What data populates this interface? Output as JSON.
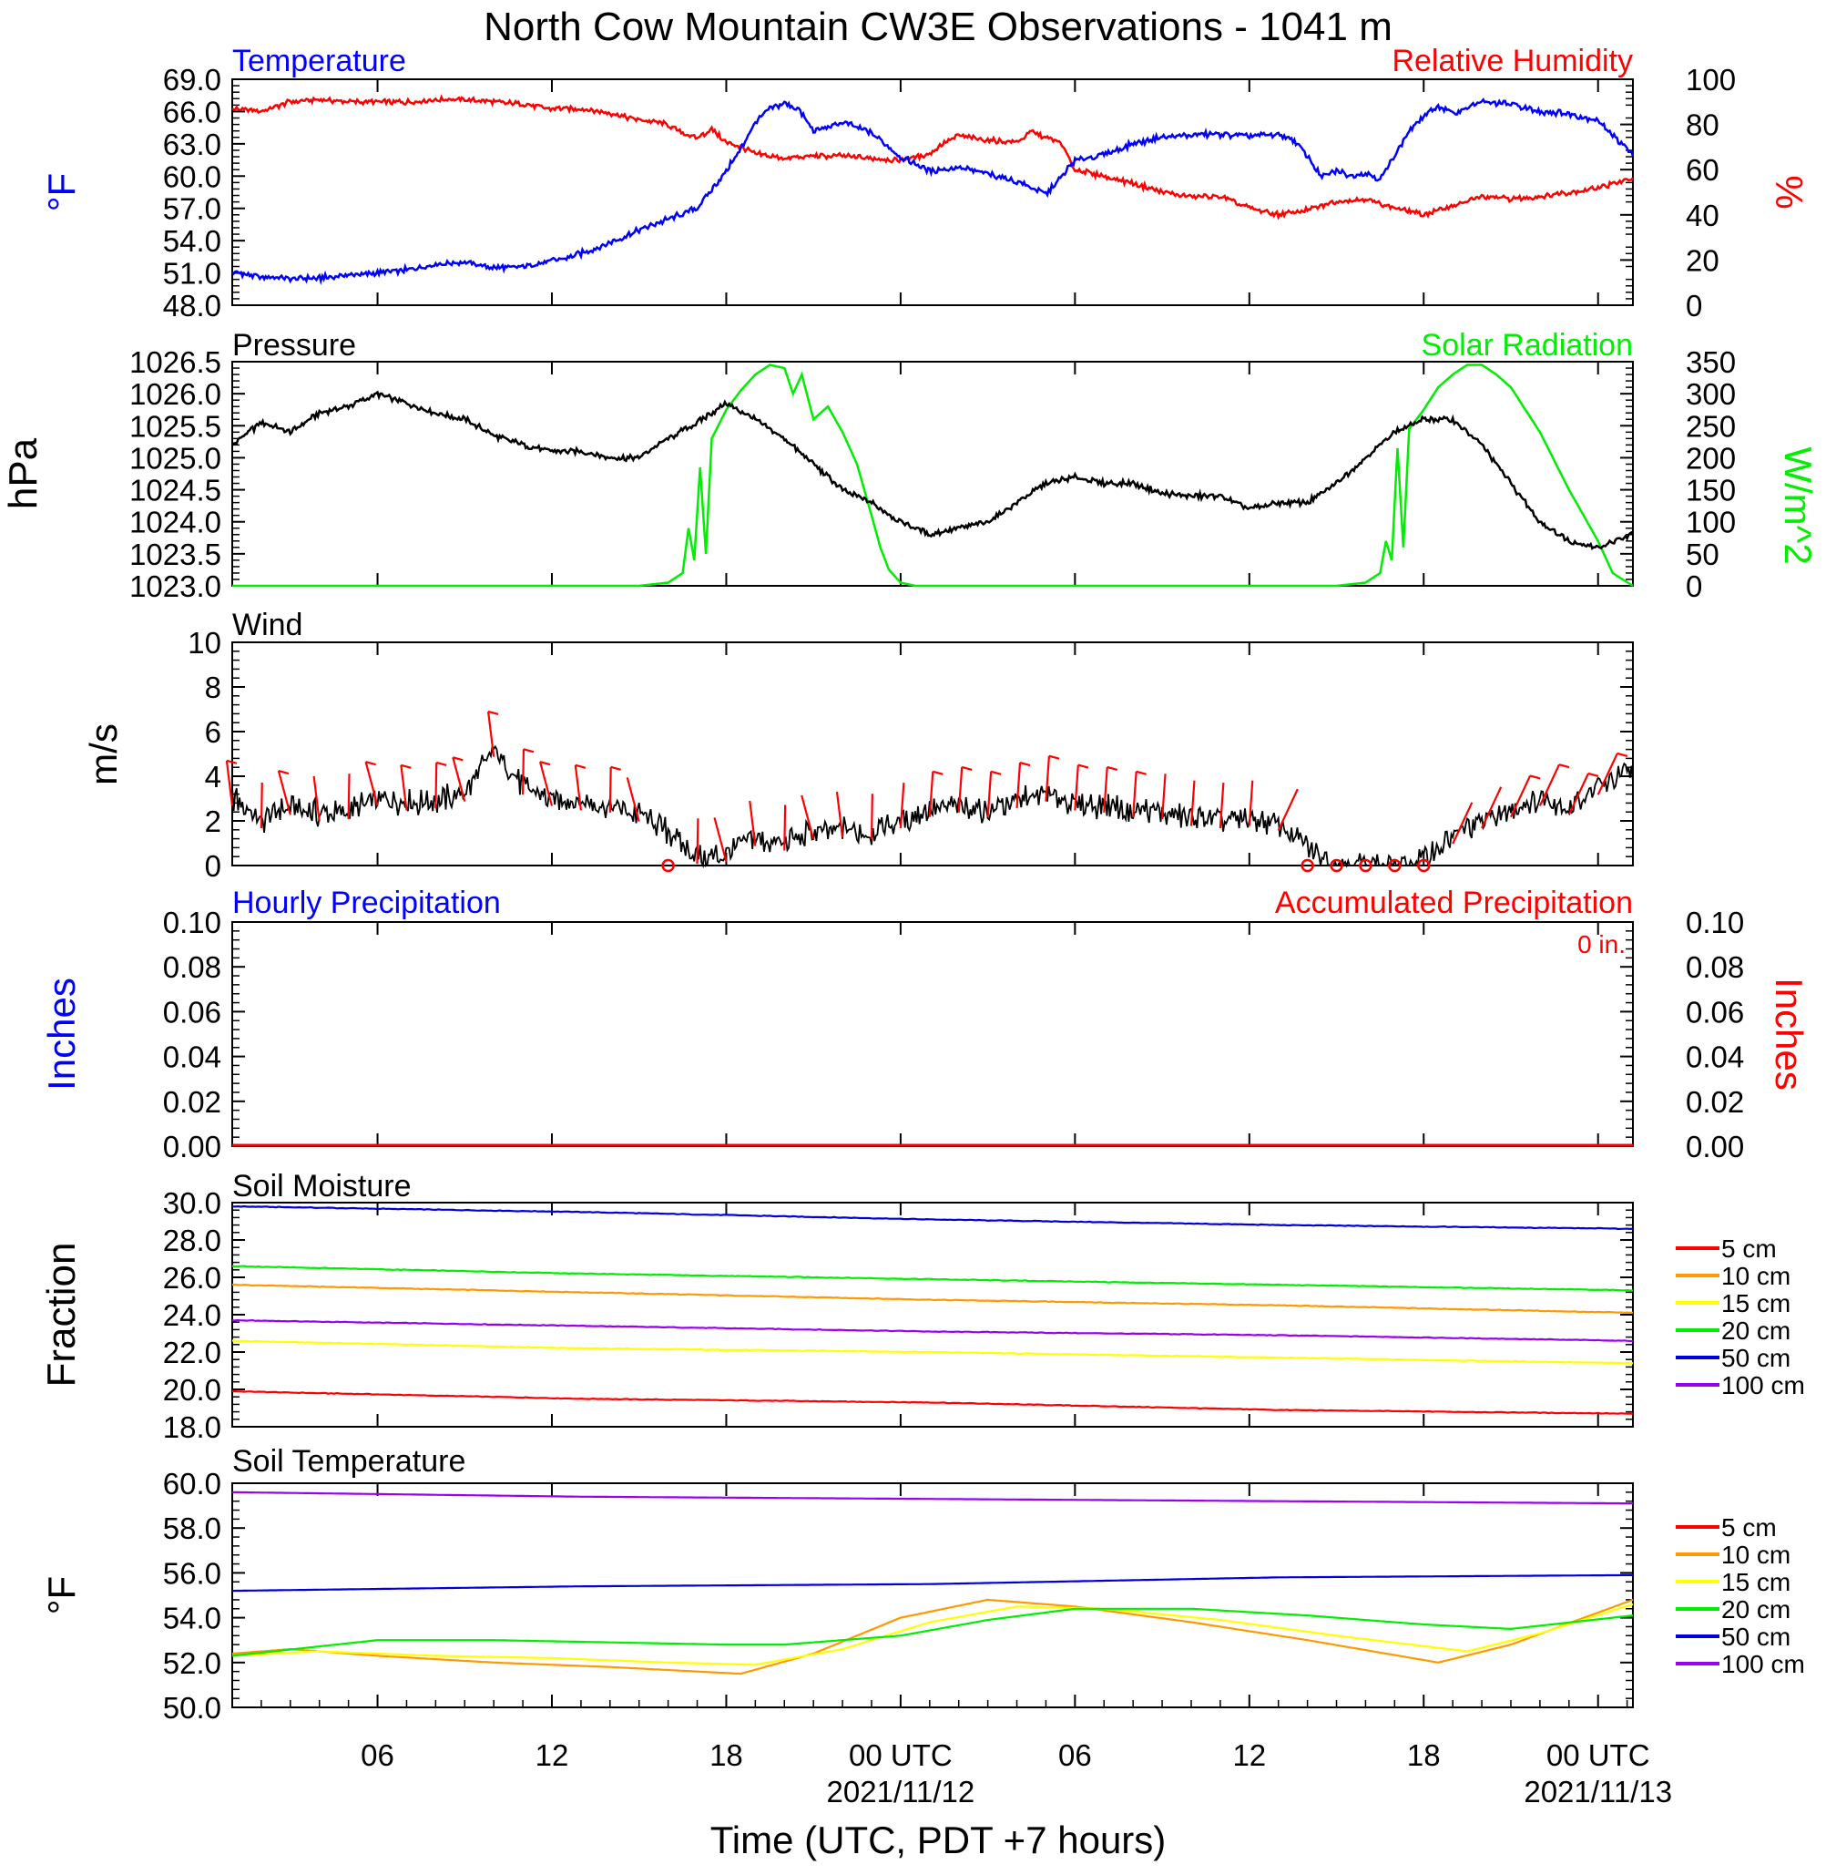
{
  "page": {
    "title": "North Cow Mountain CW3E Observations - 1041 m",
    "xlabel": "Time (UTC, PDT +7 hours)"
  },
  "colors": {
    "temperature": "#0000ff",
    "humidity": "#ff0000",
    "pressure": "#000000",
    "solar": "#00ee00",
    "wind": "#000000",
    "barb": "#ff0000",
    "precip_hourly": "#0000ff",
    "precip_accum": "#ff0000",
    "depth_5": "#ff0000",
    "depth_10": "#ff9900",
    "depth_15": "#ffff00",
    "depth_20": "#00ee00",
    "depth_50": "#0000dd",
    "depth_100": "#9900ee"
  },
  "chart_data": [
    {
      "type": "line",
      "panel": "temperature-humidity",
      "title_left": "Temperature",
      "title_right": "Relative Humidity",
      "ylabel": "°F",
      "ylabel_right": "%",
      "ylim": [
        48.0,
        69.0
      ],
      "yticks": [
        "48.0",
        "51.0",
        "54.0",
        "57.0",
        "60.0",
        "63.0",
        "66.0",
        "69.0"
      ],
      "ylim_right": [
        0,
        100
      ],
      "yticks_right": [
        "0",
        "20",
        "40",
        "60",
        "80",
        "100"
      ],
      "x_unit": "hours since 2021-11-11 00 UTC",
      "xlim": [
        1,
        49.2
      ],
      "series": [
        {
          "name": "Temperature",
          "axis": "left",
          "x": [
            1,
            2,
            3,
            4,
            5,
            6,
            7,
            8,
            9,
            10,
            11,
            12,
            13,
            14,
            15,
            16,
            17,
            18,
            18.5,
            19,
            19.5,
            20,
            20.5,
            21,
            21.5,
            22,
            23,
            24,
            25,
            26,
            27,
            28,
            29,
            29.5,
            30,
            31,
            32,
            33,
            34,
            35,
            36,
            37,
            37.5,
            38,
            38.5,
            39,
            39.5,
            40,
            40.5,
            41,
            41.5,
            42,
            42.5,
            43,
            44,
            45,
            46,
            47,
            48,
            48.5,
            49.2
          ],
          "values": [
            51.1,
            50.6,
            50.5,
            50.5,
            50.8,
            51.0,
            51.3,
            51.8,
            52.0,
            51.5,
            51.6,
            52.1,
            52.8,
            53.8,
            55.0,
            56.0,
            57.0,
            60.5,
            62.5,
            65.0,
            66.3,
            66.8,
            66.2,
            64.2,
            64.5,
            65.0,
            64.0,
            61.8,
            60.5,
            60.8,
            60.2,
            59.5,
            58.3,
            59.8,
            61.5,
            62.0,
            63.0,
            63.6,
            63.8,
            63.9,
            63.7,
            63.9,
            63.4,
            61.9,
            59.9,
            60.5,
            60.0,
            60.3,
            59.7,
            61.9,
            64.2,
            65.5,
            66.5,
            65.8,
            66.9,
            66.7,
            66.0,
            65.8,
            65.2,
            63.8,
            62.0
          ]
        },
        {
          "name": "Relative Humidity",
          "axis": "right",
          "x": [
            1,
            2,
            3,
            4,
            5,
            6,
            7,
            8,
            9,
            10,
            11,
            12,
            13,
            14,
            15,
            16,
            16.5,
            17,
            17.5,
            18,
            18.5,
            19,
            20,
            21,
            22,
            23,
            24,
            25,
            25.5,
            26,
            27,
            28,
            28.5,
            29,
            29.5,
            30,
            31,
            32,
            33,
            34,
            35,
            36,
            37,
            38,
            39,
            40,
            41,
            42,
            43,
            44,
            45,
            46,
            47,
            48,
            49.2
          ],
          "values": [
            87,
            86,
            90,
            91,
            90,
            90,
            90,
            91,
            91,
            90,
            89,
            87,
            87,
            85,
            82,
            80,
            76,
            74,
            78,
            72,
            70,
            67,
            65,
            66,
            66,
            65,
            64,
            67,
            72,
            75,
            73,
            72,
            77,
            74,
            72,
            60,
            57,
            54,
            50,
            48,
            48,
            43,
            40,
            42,
            46,
            47,
            43,
            40,
            44,
            48,
            47,
            48,
            50,
            52,
            56
          ]
        }
      ]
    },
    {
      "type": "line",
      "panel": "pressure-solar",
      "title_left": "Pressure",
      "title_right": "Solar Radiation",
      "ylabel": "hPa",
      "ylabel_right": "W/m^2",
      "ylim": [
        1023.0,
        1026.5
      ],
      "yticks": [
        "1023.0",
        "1023.5",
        "1024.0",
        "1024.5",
        "1025.0",
        "1025.5",
        "1026.0",
        "1026.5"
      ],
      "ylim_right": [
        0,
        350
      ],
      "yticks_right": [
        "0",
        "50",
        "100",
        "150",
        "200",
        "250",
        "300",
        "350"
      ],
      "x_unit": "hours since 2021-11-11 00 UTC",
      "xlim": [
        1,
        49.2
      ],
      "series": [
        {
          "name": "Pressure",
          "axis": "left",
          "x": [
            1,
            2,
            3,
            4,
            5,
            6,
            7,
            8,
            9,
            10,
            11,
            12,
            13,
            14,
            15,
            16,
            17,
            18,
            19,
            20,
            21,
            22,
            23,
            24,
            25,
            26,
            27,
            28,
            29,
            30,
            31,
            32,
            33,
            34,
            35,
            36,
            37,
            38,
            39,
            40,
            41,
            42,
            43,
            44,
            45,
            46,
            47,
            48,
            49.2
          ],
          "values": [
            1025.2,
            1025.55,
            1025.4,
            1025.7,
            1025.8,
            1026.0,
            1025.85,
            1025.7,
            1025.6,
            1025.35,
            1025.2,
            1025.1,
            1025.1,
            1025.0,
            1025.0,
            1025.3,
            1025.55,
            1025.85,
            1025.6,
            1025.3,
            1024.9,
            1024.5,
            1024.3,
            1024.0,
            1023.8,
            1023.9,
            1024.0,
            1024.3,
            1024.6,
            1024.7,
            1024.6,
            1024.6,
            1024.45,
            1024.4,
            1024.4,
            1024.2,
            1024.3,
            1024.3,
            1024.6,
            1025.0,
            1025.4,
            1025.6,
            1025.6,
            1025.2,
            1024.6,
            1024.0,
            1023.7,
            1023.6,
            1023.8
          ]
        },
        {
          "name": "Solar Radiation",
          "axis": "right",
          "x": [
            1,
            15,
            16,
            16.5,
            16.7,
            16.9,
            17.1,
            17.3,
            17.5,
            18,
            18.5,
            19,
            19.5,
            20,
            20.3,
            20.6,
            21,
            21.5,
            22,
            22.5,
            23,
            23.3,
            23.6,
            24,
            24.5,
            39,
            40,
            40.5,
            40.7,
            40.9,
            41.1,
            41.3,
            41.5,
            42,
            42.5,
            43,
            43.5,
            44,
            44.5,
            45,
            46,
            47,
            48,
            48.5,
            49.2
          ],
          "values": [
            0,
            0,
            5,
            20,
            90,
            40,
            185,
            50,
            230,
            275,
            305,
            330,
            345,
            340,
            300,
            330,
            260,
            280,
            240,
            190,
            110,
            60,
            25,
            5,
            0,
            0,
            5,
            20,
            70,
            40,
            215,
            60,
            245,
            275,
            310,
            330,
            345,
            345,
            330,
            310,
            240,
            150,
            70,
            20,
            0
          ]
        }
      ]
    },
    {
      "type": "line",
      "panel": "wind",
      "title_left": "Wind",
      "ylabel": "m/s",
      "ylim": [
        0,
        10
      ],
      "yticks": [
        "0",
        "2",
        "4",
        "6",
        "8",
        "10"
      ],
      "x_unit": "hours since 2021-11-11 00 UTC",
      "xlim": [
        1,
        49.2
      ],
      "series": [
        {
          "name": "Wind Speed",
          "x": [
            1,
            2,
            3,
            4,
            5,
            6,
            7,
            8,
            9,
            10,
            11,
            12,
            13,
            14,
            15,
            16,
            17,
            18,
            19,
            20,
            21,
            22,
            23,
            24,
            25,
            26,
            27,
            28,
            29,
            30,
            31,
            32,
            33,
            34,
            35,
            36,
            37,
            38,
            39,
            40,
            41,
            42,
            43,
            44,
            45,
            46,
            47,
            48,
            49.2
          ],
          "values": [
            3.0,
            2.0,
            2.6,
            2.3,
            2.4,
            3.0,
            2.8,
            2.9,
            3.2,
            5.2,
            3.5,
            3.0,
            2.8,
            2.7,
            2.3,
            1.5,
            0.4,
            0.5,
            1.2,
            1.0,
            1.5,
            1.6,
            1.5,
            2.0,
            2.5,
            2.7,
            2.5,
            2.9,
            3.2,
            2.8,
            2.7,
            2.5,
            2.4,
            2.1,
            2.0,
            2.1,
            1.9,
            0.8,
            0.0,
            0.0,
            0.0,
            0.3,
            1.3,
            2.0,
            2.5,
            3.0,
            2.6,
            3.5,
            4.2
          ]
        }
      ],
      "calm_hours": [
        16,
        38,
        39,
        40,
        41,
        42
      ]
    },
    {
      "type": "line",
      "panel": "precipitation",
      "title_left": "Hourly Precipitation",
      "title_right": "Accumulated Precipitation",
      "annotation": "0 in.",
      "ylabel": "Inches",
      "ylabel_right": "Inches",
      "ylim": [
        0,
        0.1
      ],
      "yticks": [
        "0.00",
        "0.02",
        "0.04",
        "0.06",
        "0.08",
        "0.10"
      ],
      "yticks_right": [
        "0.00",
        "0.02",
        "0.04",
        "0.06",
        "0.08",
        "0.10"
      ],
      "x_unit": "hours since 2021-11-11 00 UTC",
      "xlim": [
        1,
        49.2
      ],
      "series": [
        {
          "name": "Hourly Precipitation",
          "x": [
            1,
            49.2
          ],
          "values": [
            0,
            0
          ]
        },
        {
          "name": "Accumulated Precipitation",
          "x": [
            1,
            49.2
          ],
          "values": [
            0,
            0
          ]
        }
      ]
    },
    {
      "type": "line",
      "panel": "soil-moisture",
      "title_left": "Soil Moisture",
      "ylabel": "Fraction",
      "ylim": [
        18.0,
        30.0
      ],
      "yticks": [
        "18.0",
        "20.0",
        "22.0",
        "24.0",
        "26.0",
        "28.0",
        "30.0"
      ],
      "x_unit": "hours since 2021-11-11 00 UTC",
      "xlim": [
        1,
        49.2
      ],
      "legend": [
        "5 cm",
        "10 cm",
        "15 cm",
        "20 cm",
        "50 cm",
        "100 cm"
      ],
      "series": [
        {
          "name": "5 cm",
          "x": [
            1,
            13,
            25,
            37,
            49.2
          ],
          "values": [
            19.9,
            19.5,
            19.3,
            18.9,
            18.7
          ]
        },
        {
          "name": "10 cm",
          "x": [
            1,
            13,
            25,
            37,
            49.2
          ],
          "values": [
            25.6,
            25.2,
            24.8,
            24.5,
            24.1
          ]
        },
        {
          "name": "15 cm",
          "x": [
            1,
            13,
            25,
            37,
            49.2
          ],
          "values": [
            22.6,
            22.2,
            22.0,
            21.7,
            21.4
          ]
        },
        {
          "name": "20 cm",
          "x": [
            1,
            13,
            25,
            37,
            49.2
          ],
          "values": [
            26.6,
            26.2,
            25.9,
            25.6,
            25.3
          ]
        },
        {
          "name": "50 cm",
          "x": [
            1,
            13,
            25,
            37,
            49.2
          ],
          "values": [
            29.8,
            29.5,
            29.1,
            28.8,
            28.6
          ]
        },
        {
          "name": "100 cm",
          "x": [
            1,
            13,
            25,
            37,
            49.2
          ],
          "values": [
            23.7,
            23.4,
            23.1,
            22.9,
            22.6
          ]
        }
      ]
    },
    {
      "type": "line",
      "panel": "soil-temperature",
      "title_left": "Soil Temperature",
      "ylabel": "°F",
      "ylim": [
        50.0,
        60.0
      ],
      "yticks": [
        "50.0",
        "52.0",
        "54.0",
        "56.0",
        "58.0",
        "60.0"
      ],
      "x_unit": "hours since 2021-11-11 00 UTC",
      "xlim": [
        1,
        49.2
      ],
      "legend": [
        "5 cm",
        "10 cm",
        "15 cm",
        "20 cm",
        "50 cm",
        "100 cm"
      ],
      "series": [
        {
          "name": "10 cm",
          "x": [
            1,
            3,
            6,
            10,
            14,
            18.5,
            21,
            24,
            27,
            30,
            34,
            38,
            42.5,
            45,
            49.2
          ],
          "values": [
            52.4,
            52.6,
            52.3,
            52.0,
            51.8,
            51.5,
            52.4,
            54.0,
            54.8,
            54.5,
            53.8,
            53.0,
            52.0,
            52.8,
            54.8
          ]
        },
        {
          "name": "15 cm",
          "x": [
            1,
            4,
            8,
            12,
            16,
            19,
            22,
            25,
            28,
            31,
            35,
            39,
            43.5,
            46,
            49.2
          ],
          "values": [
            52.3,
            52.5,
            52.3,
            52.2,
            52.0,
            51.9,
            52.6,
            53.8,
            54.5,
            54.4,
            53.9,
            53.2,
            52.5,
            53.3,
            54.6
          ]
        },
        {
          "name": "20 cm",
          "x": [
            1,
            6,
            10,
            14,
            18,
            20,
            24,
            27,
            30,
            34,
            38,
            42,
            45,
            49.2
          ],
          "values": [
            52.3,
            53.0,
            53.0,
            52.9,
            52.8,
            52.8,
            53.2,
            53.9,
            54.4,
            54.4,
            54.1,
            53.7,
            53.5,
            54.1
          ]
        },
        {
          "name": "50 cm",
          "x": [
            1,
            13,
            25,
            37,
            49.2
          ],
          "values": [
            55.2,
            55.4,
            55.5,
            55.8,
            55.9
          ]
        },
        {
          "name": "100 cm",
          "x": [
            1,
            13,
            25,
            37,
            49.2
          ],
          "values": [
            59.6,
            59.4,
            59.3,
            59.2,
            59.1
          ]
        }
      ]
    }
  ],
  "x_axis": {
    "ticks": [
      {
        "hour": 6,
        "label": "06",
        "sublabel": ""
      },
      {
        "hour": 12,
        "label": "12",
        "sublabel": ""
      },
      {
        "hour": 18,
        "label": "18",
        "sublabel": ""
      },
      {
        "hour": 24,
        "label": "00 UTC",
        "sublabel": "2021/11/12"
      },
      {
        "hour": 30,
        "label": "06",
        "sublabel": ""
      },
      {
        "hour": 36,
        "label": "12",
        "sublabel": ""
      },
      {
        "hour": 42,
        "label": "18",
        "sublabel": ""
      },
      {
        "hour": 48,
        "label": "00 UTC",
        "sublabel": "2021/11/13"
      }
    ]
  }
}
